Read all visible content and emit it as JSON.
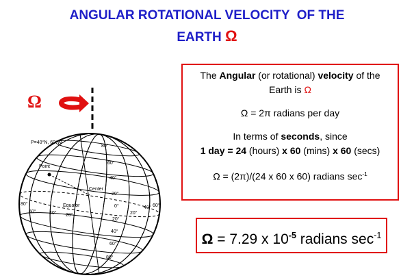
{
  "title": {
    "line1": "ANGULAR ROTATIONAL VELOCITY  OF THE",
    "line2": "EARTH",
    "symbol": "Ω"
  },
  "globe": {
    "symbol": "Ω",
    "labels": [
      "P=40°N, 60°W",
      "Point",
      "Center",
      "Equator",
      "80°",
      "60°",
      "40°",
      "20°",
      "0°",
      "20°",
      "40°",
      "60°",
      "80°",
      "80°",
      "60°",
      "40°",
      "20°",
      "20°",
      "40°",
      "60°"
    ]
  },
  "definition_box": {
    "lines": [
      [
        {
          "text": "The "
        },
        {
          "text": "Angular",
          "bold": true
        },
        {
          "text": " (or rotational) "
        },
        {
          "text": "velocity",
          "bold": true
        },
        {
          "text": " of the"
        }
      ],
      [
        {
          "text": "Earth is "
        },
        {
          "text": "Ω",
          "red": true
        }
      ],
      [
        {
          "text": "Ω = 2π radians per day"
        }
      ],
      [
        {
          "text": "In terms of "
        },
        {
          "text": "seconds",
          "bold": true
        },
        {
          "text": ", since"
        }
      ],
      [
        {
          "text": "1 day = 24",
          "bold": true
        },
        {
          "text": " (hours) "
        },
        {
          "text": "x 60",
          "bold": true
        },
        {
          "text": " (mins) "
        },
        {
          "text": "x 60",
          "bold": true
        },
        {
          "text": " (secs)"
        }
      ],
      [
        {
          "text": "Ω = (2π)/(24 x 60 x 60) radians sec"
        },
        {
          "text": "-1",
          "sup": true
        }
      ]
    ]
  },
  "result_box": {
    "segments": [
      {
        "text": "Ω",
        "bold": true
      },
      {
        "text": " = 7.29 x 10"
      },
      {
        "text": "-5",
        "sup": true,
        "bold": true
      },
      {
        "text": " radians sec"
      },
      {
        "text": "-1",
        "sup": true
      }
    ]
  }
}
